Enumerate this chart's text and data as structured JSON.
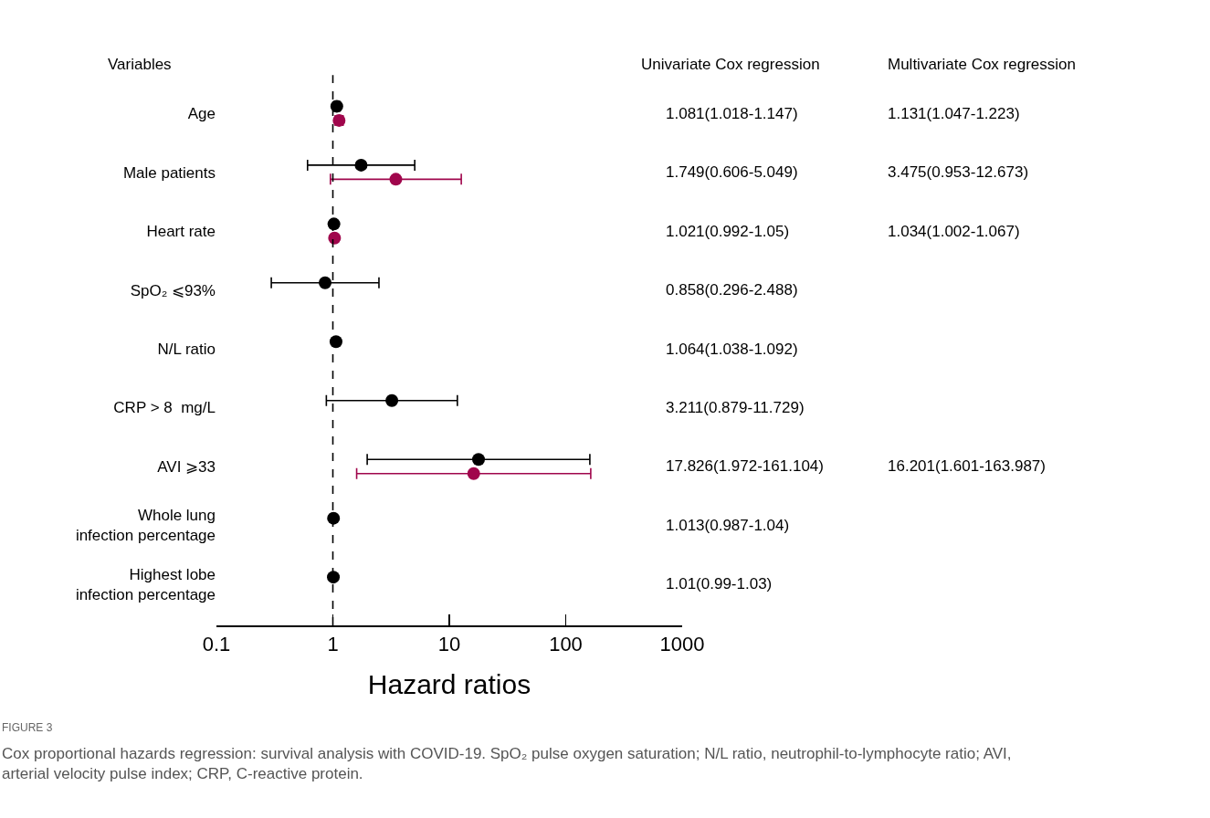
{
  "chart_data": {
    "type": "scatter",
    "orientation": "horizontal",
    "log": "x",
    "marker": "circle",
    "ylabel": "Variables",
    "xlabel": "Hazard ratios",
    "categories": [
      "Age",
      "Male patients",
      "Heart rate",
      "SpO₂ ⩽93%",
      "N/L ratio",
      "CRP > 8  mg/L",
      "AVI ⩾33",
      "Whole lung\ninfection percentage",
      "Highest lobe\ninfection percentage"
    ],
    "xlim": [
      0.1,
      1000
    ],
    "xticks": [
      0.1,
      1,
      10,
      100,
      1000
    ],
    "ref_lines": [
      {
        "axis": "x",
        "value": 1,
        "color": "#000000",
        "line_style": "dashed"
      }
    ],
    "series": [
      {
        "color": "#000000",
        "values": [
          1.081,
          1.749,
          1.021,
          0.858,
          1.064,
          3.211,
          17.826,
          1.013,
          1.01
        ],
        "errors": [
          [
            1.018,
            1.147
          ],
          [
            0.606,
            5.049
          ],
          [
            0.992,
            1.05
          ],
          [
            0.296,
            2.488
          ],
          [
            1.038,
            1.092
          ],
          [
            0.879,
            11.729
          ],
          [
            1.972,
            161.104
          ],
          [
            0.987,
            1.04
          ],
          [
            0.99,
            1.03
          ]
        ]
      },
      {
        "color": "#a0064c",
        "values": [
          1.131,
          3.475,
          1.034,
          null,
          null,
          null,
          16.201,
          null,
          null
        ],
        "errors": [
          [
            1.047,
            1.223
          ],
          [
            0.953,
            12.673
          ],
          [
            1.002,
            1.067
          ],
          null,
          null,
          null,
          [
            1.601,
            163.987
          ],
          null,
          null
        ]
      }
    ],
    "annotations": [
      "Univariate Cox regression",
      "Multivariate Cox regression",
      "1.081(1.018-1.147)",
      "1.749(0.606-5.049)",
      "1.021(0.992-1.05)",
      "0.858(0.296-2.488)",
      "1.064(1.038-1.092)",
      "3.211(0.879-11.729)",
      "17.826(1.972-161.104)",
      "1.013(0.987-1.04)",
      "1.01(0.99-1.03)",
      "1.131(1.047-1.223)",
      "3.475(0.953-12.673)",
      "1.034(1.002-1.067)",
      "16.201(1.601-163.987)",
      "FIGURE 3",
      "Cox proportional hazards regression: survival analysis with COVID-19. SpO₂ pulse oxygen saturation; N/L ratio, neutrophil-to-lymphocyte ratio; AVI,\narterial velocity pulse index; CRP, C-reactive protein."
    ]
  }
}
